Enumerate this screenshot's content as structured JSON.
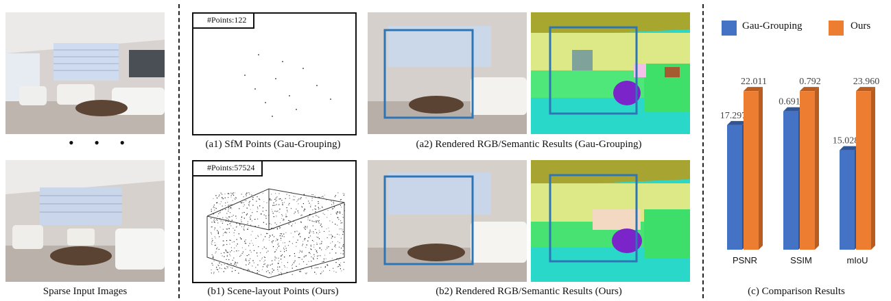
{
  "panels": {
    "input": {
      "caption": "Sparse Input Images",
      "ellipsis": "• • •"
    },
    "a1": {
      "caption": "(a1) SfM Points (Gau-Grouping)",
      "points_label": "#Points:122"
    },
    "a2": {
      "caption": "(a2) Rendered RGB/Semantic Results (Gau-Grouping)"
    },
    "b1": {
      "caption": "(b1) Scene-layout Points (Ours)",
      "points_label": "#Points:57524"
    },
    "b2": {
      "caption": "(b2) Rendered RGB/Semantic Results (Ours)"
    },
    "c": {
      "caption": "(c) Comparison Results"
    }
  },
  "colors": {
    "gau_grouping": "#4472c4",
    "ours": "#ed7d31",
    "highlight_box": "#2e75b6"
  },
  "chart_data": {
    "type": "bar",
    "categories": [
      "PSNR",
      "SSIM",
      "mIoU"
    ],
    "series": [
      {
        "name": "Gau-Grouping",
        "values": [
          17.297,
          0.691,
          15.028
        ],
        "labels": [
          "17.297",
          "0.691",
          "15.028"
        ]
      },
      {
        "name": "Ours",
        "values": [
          22.011,
          0.792,
          23.96
        ],
        "labels": [
          "22.011",
          "0.792",
          "23.960"
        ]
      }
    ],
    "legend_position": "top",
    "grid": false,
    "bars_3d": true
  }
}
